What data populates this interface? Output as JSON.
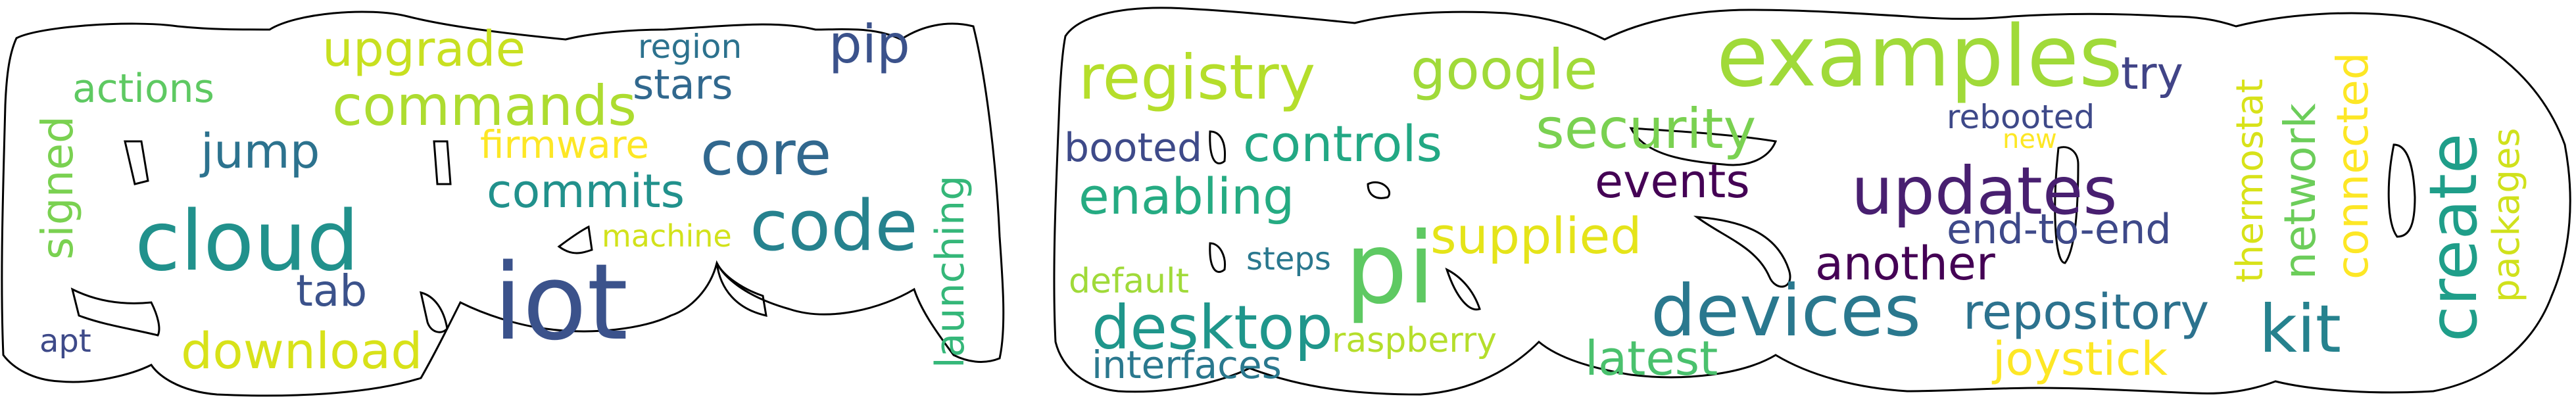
{
  "colors": {
    "background": "#ffffff",
    "outline": "#000000",
    "palette_note": "viridis"
  },
  "words": [
    {
      "id": "w-actions",
      "text": "actions",
      "color": "#5ec962"
    },
    {
      "id": "w-upgrade",
      "text": "upgrade",
      "color": "#c8e020"
    },
    {
      "id": "w-region",
      "text": "region",
      "color": "#2c728e"
    },
    {
      "id": "w-pip",
      "text": "pip",
      "color": "#3b528b"
    },
    {
      "id": "w-stars",
      "text": "stars",
      "color": "#31688e"
    },
    {
      "id": "w-commands",
      "text": "commands",
      "color": "#addc30"
    },
    {
      "id": "w-signed",
      "text": "signed",
      "color": "#7ad151"
    },
    {
      "id": "w-jump",
      "text": "jump",
      "color": "#2c728e"
    },
    {
      "id": "w-firmware",
      "text": "firmware",
      "color": "#fde725"
    },
    {
      "id": "w-core",
      "text": "core",
      "color": "#31688e"
    },
    {
      "id": "w-commits",
      "text": "commits",
      "color": "#21918c"
    },
    {
      "id": "w-launching",
      "text": "launching",
      "color": "#35b779"
    },
    {
      "id": "w-cloud",
      "text": "cloud",
      "color": "#21918c"
    },
    {
      "id": "w-machine",
      "text": "machine",
      "color": "#d2e21b"
    },
    {
      "id": "w-code",
      "text": "code",
      "color": "#26828e"
    },
    {
      "id": "w-tab",
      "text": "tab",
      "color": "#3b528b"
    },
    {
      "id": "w-iot",
      "text": "iot",
      "color": "#3b528b"
    },
    {
      "id": "w-apt",
      "text": "apt",
      "color": "#3e4a89"
    },
    {
      "id": "w-download",
      "text": "download",
      "color": "#d8e219"
    },
    {
      "id": "w-registry",
      "text": "registry",
      "color": "#b5de2b"
    },
    {
      "id": "w-google",
      "text": "google",
      "color": "#a0da39"
    },
    {
      "id": "w-examples",
      "text": "examples",
      "color": "#a0da39"
    },
    {
      "id": "w-try",
      "text": "try",
      "color": "#414487"
    },
    {
      "id": "w-thermostat",
      "text": "thermostat",
      "color": "#d8e219"
    },
    {
      "id": "w-network",
      "text": "network",
      "color": "#6ccd5a"
    },
    {
      "id": "w-connected",
      "text": "connected",
      "color": "#fde725"
    },
    {
      "id": "w-create",
      "text": "create",
      "color": "#1f9e89"
    },
    {
      "id": "w-packages",
      "text": "packages",
      "color": "#d0e11c"
    },
    {
      "id": "w-booted",
      "text": "booted",
      "color": "#3e4a89"
    },
    {
      "id": "w-controls",
      "text": "controls",
      "color": "#22a884"
    },
    {
      "id": "w-security",
      "text": "security",
      "color": "#7ad151"
    },
    {
      "id": "w-rebooted",
      "text": "rebooted",
      "color": "#3e4989"
    },
    {
      "id": "w-new",
      "text": "new",
      "color": "#fde725"
    },
    {
      "id": "w-enabling",
      "text": "enabling",
      "color": "#25ab82"
    },
    {
      "id": "w-events",
      "text": "events",
      "color": "#440154"
    },
    {
      "id": "w-updates",
      "text": "updates",
      "color": "#481f70"
    },
    {
      "id": "w-end-to-end",
      "text": "end-to-end",
      "color": "#3e4989"
    },
    {
      "id": "w-supplied",
      "text": "supplied",
      "color": "#e5e419"
    },
    {
      "id": "w-steps",
      "text": "steps",
      "color": "#2a788e"
    },
    {
      "id": "w-default",
      "text": "default",
      "color": "#a0da39"
    },
    {
      "id": "w-pi",
      "text": "pi",
      "color": "#5ec962"
    },
    {
      "id": "w-another",
      "text": "another",
      "color": "#440154"
    },
    {
      "id": "w-desktop",
      "text": "desktop",
      "color": "#1f968b"
    },
    {
      "id": "w-devices",
      "text": "devices",
      "color": "#2a788e"
    },
    {
      "id": "w-repository",
      "text": "repository",
      "color": "#2c728e"
    },
    {
      "id": "w-raspberry",
      "text": "raspberry",
      "color": "#b5de2b"
    },
    {
      "id": "w-interfaces",
      "text": "interfaces",
      "color": "#2a788e"
    },
    {
      "id": "w-latest",
      "text": "latest",
      "color": "#4ac16d"
    },
    {
      "id": "w-joystick",
      "text": "joystick",
      "color": "#fde725"
    },
    {
      "id": "w-kit",
      "text": "kit",
      "color": "#26828e"
    }
  ]
}
